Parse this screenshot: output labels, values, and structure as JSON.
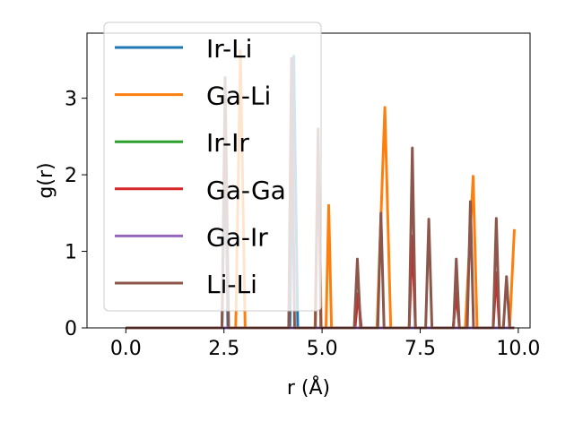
{
  "chart_data": {
    "type": "line",
    "title": "",
    "xlabel": "r (Å)",
    "ylabel": "g(r)",
    "xlim": [
      -0.99,
      10.3
    ],
    "ylim": [
      0,
      3.85
    ],
    "xticks": [
      0.0,
      2.5,
      5.0,
      7.5,
      10.0
    ],
    "xtick_labels": [
      "0.0",
      "2.5",
      "5.0",
      "7.5",
      "10.0"
    ],
    "yticks": [
      0,
      1,
      2,
      3
    ],
    "ytick_labels": [
      "0",
      "1",
      "2",
      "3"
    ],
    "grid": false,
    "legend_position": "top-left",
    "series": [
      {
        "name": "Ir-Li",
        "color": "#1f77b4",
        "points": [
          [
            0,
            0
          ],
          [
            2.45,
            0
          ],
          [
            2.53,
            2.45
          ],
          [
            2.6,
            0
          ],
          [
            3.8,
            0
          ],
          [
            4.18,
            0
          ],
          [
            4.28,
            3.55
          ],
          [
            4.38,
            0
          ],
          [
            9.9,
            0
          ]
        ]
      },
      {
        "name": "Ga-Li",
        "color": "#ff7f0e",
        "points": [
          [
            0,
            0
          ],
          [
            2.8,
            0
          ],
          [
            2.92,
            3.62
          ],
          [
            3.04,
            0
          ],
          [
            4.82,
            0
          ],
          [
            4.9,
            2.5
          ],
          [
            4.98,
            0
          ],
          [
            5.1,
            0
          ],
          [
            5.17,
            1.6
          ],
          [
            5.24,
            0
          ],
          [
            6.4,
            0
          ],
          [
            6.6,
            2.88
          ],
          [
            6.75,
            0
          ],
          [
            8.65,
            0
          ],
          [
            8.85,
            1.98
          ],
          [
            8.95,
            0
          ],
          [
            9.78,
            0
          ],
          [
            9.9,
            1.29
          ]
        ]
      },
      {
        "name": "Ir-Ir",
        "color": "#2ca02c",
        "points": [
          [
            0,
            0
          ],
          [
            9.9,
            0
          ]
        ]
      },
      {
        "name": "Ga-Ga",
        "color": "#d62728",
        "points": [
          [
            0,
            0
          ],
          [
            5.84,
            0
          ],
          [
            5.92,
            0.45
          ],
          [
            6.0,
            0
          ],
          [
            7.22,
            0
          ],
          [
            7.3,
            1.2
          ],
          [
            7.38,
            0
          ],
          [
            8.34,
            0
          ],
          [
            8.42,
            0.45
          ],
          [
            8.5,
            0
          ],
          [
            9.36,
            0
          ],
          [
            9.44,
            0.72
          ],
          [
            9.52,
            0
          ],
          [
            9.9,
            0
          ]
        ]
      },
      {
        "name": "Ga-Ir",
        "color": "#9467bd",
        "points": [
          [
            0,
            0
          ],
          [
            9.9,
            0
          ]
        ]
      },
      {
        "name": "Li-Li",
        "color": "#8c564b",
        "points": [
          [
            0,
            0
          ],
          [
            2.45,
            0
          ],
          [
            2.53,
            3.27
          ],
          [
            2.62,
            0
          ],
          [
            4.15,
            0
          ],
          [
            4.22,
            3.52
          ],
          [
            4.3,
            0
          ],
          [
            4.83,
            0
          ],
          [
            4.9,
            2.6
          ],
          [
            4.97,
            0
          ],
          [
            5.82,
            0
          ],
          [
            5.9,
            0.9
          ],
          [
            5.98,
            0
          ],
          [
            6.42,
            0
          ],
          [
            6.5,
            1.5
          ],
          [
            6.58,
            0
          ],
          [
            7.22,
            0
          ],
          [
            7.3,
            2.35
          ],
          [
            7.38,
            0
          ],
          [
            7.64,
            0
          ],
          [
            7.72,
            1.42
          ],
          [
            7.8,
            0
          ],
          [
            8.35,
            0
          ],
          [
            8.42,
            0.9
          ],
          [
            8.5,
            0
          ],
          [
            8.7,
            0
          ],
          [
            8.78,
            1.65
          ],
          [
            8.86,
            0
          ],
          [
            9.36,
            0
          ],
          [
            9.44,
            1.43
          ],
          [
            9.52,
            0
          ],
          [
            9.62,
            0
          ],
          [
            9.7,
            0.67
          ],
          [
            9.78,
            0
          ],
          [
            9.9,
            0
          ]
        ]
      }
    ]
  }
}
